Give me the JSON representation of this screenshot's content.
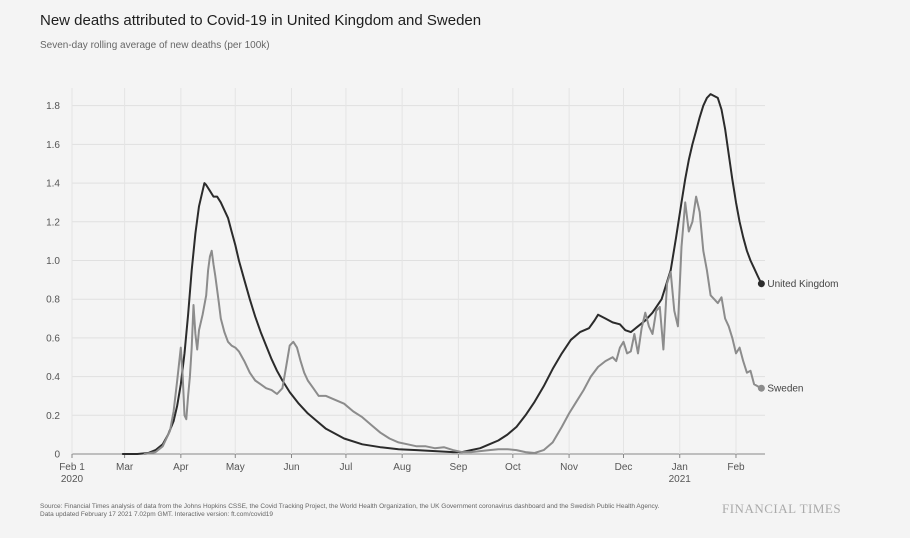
{
  "chart_data": {
    "type": "line",
    "title": "New deaths attributed to Covid-19 in United Kingdom and Sweden",
    "subtitle": "Seven-day rolling average of new deaths (per 100k)",
    "ylim": [
      0,
      1.85
    ],
    "yticks": [
      0,
      0.2,
      0.4,
      0.6,
      0.8,
      1.0,
      1.2,
      1.4,
      1.6,
      1.8
    ],
    "ytick_labels": [
      "0",
      "0.2",
      "0.4",
      "0.6",
      "0.8",
      "1.0",
      "1.2",
      "1.4",
      "1.6",
      "1.8"
    ],
    "xlim": [
      0,
      382
    ],
    "xticks": [
      {
        "day": 0,
        "label": "Feb 1",
        "sub": "2020"
      },
      {
        "day": 29,
        "label": "Mar",
        "sub": ""
      },
      {
        "day": 60,
        "label": "Apr",
        "sub": ""
      },
      {
        "day": 90,
        "label": "May",
        "sub": ""
      },
      {
        "day": 121,
        "label": "Jun",
        "sub": ""
      },
      {
        "day": 151,
        "label": "Jul",
        "sub": ""
      },
      {
        "day": 182,
        "label": "Aug",
        "sub": ""
      },
      {
        "day": 213,
        "label": "Sep",
        "sub": ""
      },
      {
        "day": 243,
        "label": "Oct",
        "sub": ""
      },
      {
        "day": 274,
        "label": "Nov",
        "sub": ""
      },
      {
        "day": 304,
        "label": "Dec",
        "sub": ""
      },
      {
        "day": 335,
        "label": "Jan",
        "sub": "2021"
      },
      {
        "day": 366,
        "label": "Feb",
        "sub": ""
      }
    ],
    "grid": true,
    "series": [
      {
        "name": "United Kingdom",
        "color": "#2b2b2b",
        "x": [
          28,
          36,
          42,
          46,
          50,
          53,
          56,
          58,
          60,
          62,
          64,
          66,
          68,
          70,
          72,
          73,
          74,
          76,
          78,
          80,
          82,
          84,
          86,
          88,
          90,
          92,
          95,
          98,
          101,
          104,
          107,
          110,
          113,
          116,
          120,
          125,
          130,
          135,
          140,
          150,
          160,
          170,
          180,
          190,
          200,
          210,
          215,
          220,
          225,
          230,
          235,
          240,
          245,
          250,
          255,
          260,
          265,
          270,
          275,
          280,
          285,
          288,
          290,
          294,
          298,
          302,
          305,
          308,
          312,
          316,
          320,
          325,
          330,
          333,
          336,
          338,
          340,
          342,
          344,
          346,
          348,
          350,
          352,
          354,
          356,
          358,
          360,
          362,
          364,
          366,
          368,
          370,
          372,
          374,
          376,
          378,
          380
        ],
        "y": [
          0,
          0,
          0.005,
          0.02,
          0.05,
          0.1,
          0.17,
          0.25,
          0.36,
          0.52,
          0.72,
          0.95,
          1.14,
          1.28,
          1.36,
          1.4,
          1.39,
          1.36,
          1.33,
          1.33,
          1.3,
          1.26,
          1.22,
          1.15,
          1.08,
          1.0,
          0.9,
          0.8,
          0.71,
          0.63,
          0.56,
          0.49,
          0.43,
          0.38,
          0.32,
          0.26,
          0.21,
          0.17,
          0.13,
          0.08,
          0.05,
          0.035,
          0.025,
          0.02,
          0.015,
          0.01,
          0.01,
          0.02,
          0.03,
          0.05,
          0.07,
          0.1,
          0.14,
          0.2,
          0.27,
          0.35,
          0.44,
          0.52,
          0.59,
          0.63,
          0.65,
          0.69,
          0.72,
          0.7,
          0.68,
          0.67,
          0.64,
          0.63,
          0.66,
          0.69,
          0.73,
          0.8,
          0.95,
          1.12,
          1.3,
          1.42,
          1.52,
          1.6,
          1.67,
          1.74,
          1.8,
          1.84,
          1.86,
          1.85,
          1.84,
          1.78,
          1.68,
          1.55,
          1.42,
          1.3,
          1.2,
          1.12,
          1.05,
          1.0,
          0.96,
          0.92,
          0.88
        ]
      },
      {
        "name": "Sweden",
        "color": "#8c8c8c",
        "x": [
          40,
          46,
          50,
          54,
          56,
          58,
          60,
          61,
          62,
          63,
          64,
          65,
          66,
          67,
          68,
          69,
          70,
          72,
          74,
          75,
          76,
          77,
          78,
          79,
          80,
          81,
          82,
          84,
          86,
          88,
          90,
          92,
          95,
          98,
          101,
          104,
          107,
          110,
          113,
          116,
          118,
          120,
          122,
          124,
          126,
          128,
          130,
          133,
          136,
          140,
          145,
          150,
          155,
          160,
          165,
          170,
          175,
          180,
          185,
          190,
          195,
          200,
          205,
          210,
          215,
          220,
          225,
          230,
          235,
          240,
          245,
          250,
          255,
          260,
          265,
          270,
          274,
          278,
          282,
          286,
          290,
          294,
          298,
          300,
          302,
          304,
          306,
          308,
          310,
          312,
          314,
          316,
          318,
          320,
          322,
          324,
          326,
          328,
          330,
          332,
          334,
          336,
          338,
          340,
          342,
          344,
          346,
          348,
          350,
          352,
          354,
          356,
          358,
          360,
          362,
          364,
          366,
          368,
          370,
          372,
          374,
          376,
          378,
          380
        ],
        "y": [
          0,
          0.01,
          0.04,
          0.12,
          0.22,
          0.38,
          0.55,
          0.4,
          0.2,
          0.18,
          0.3,
          0.4,
          0.55,
          0.77,
          0.62,
          0.54,
          0.64,
          0.72,
          0.82,
          0.95,
          1.02,
          1.05,
          0.98,
          0.92,
          0.85,
          0.78,
          0.7,
          0.63,
          0.58,
          0.56,
          0.55,
          0.53,
          0.48,
          0.42,
          0.38,
          0.36,
          0.34,
          0.33,
          0.31,
          0.34,
          0.45,
          0.56,
          0.58,
          0.55,
          0.48,
          0.42,
          0.38,
          0.34,
          0.3,
          0.3,
          0.28,
          0.26,
          0.22,
          0.19,
          0.15,
          0.11,
          0.08,
          0.06,
          0.05,
          0.04,
          0.04,
          0.03,
          0.035,
          0.02,
          0.01,
          0.01,
          0.015,
          0.02,
          0.025,
          0.025,
          0.02,
          0.01,
          0.005,
          0.02,
          0.06,
          0.14,
          0.21,
          0.27,
          0.33,
          0.4,
          0.45,
          0.48,
          0.5,
          0.48,
          0.55,
          0.58,
          0.52,
          0.53,
          0.62,
          0.52,
          0.65,
          0.73,
          0.66,
          0.62,
          0.74,
          0.76,
          0.54,
          0.88,
          0.94,
          0.74,
          0.66,
          1.07,
          1.3,
          1.15,
          1.2,
          1.33,
          1.25,
          1.05,
          0.95,
          0.82,
          0.8,
          0.78,
          0.81,
          0.7,
          0.66,
          0.6,
          0.52,
          0.55,
          0.48,
          0.42,
          0.43,
          0.36,
          0.35,
          0.34
        ]
      }
    ]
  },
  "footer": {
    "source": "Source: Financial Times analysis of data from the Johns Hopkins CSSE, the Covid Tracking Project, the World Health Organization, the UK Government coronavirus dashboard and the Swedish Public Health Agency.",
    "updated": "Data updated February 17 2021 7.02pm GMT. Interactive version: ft.com/covid19"
  },
  "brand": "FINANCIAL TIMES"
}
